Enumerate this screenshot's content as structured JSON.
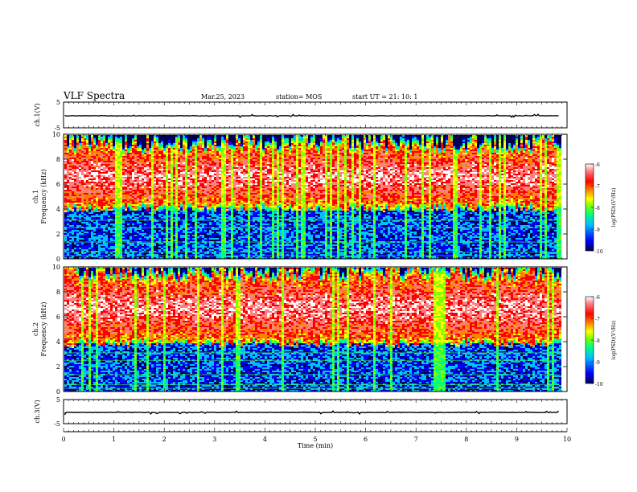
{
  "header": {
    "title": "VLF Spectra",
    "date": "Mar.25, 2023",
    "station": "station= MOS",
    "start_ut": "start  UT =   21: 10: 1"
  },
  "colors": {
    "colormap": [
      "#000050",
      "#0000ff",
      "#00c0ff",
      "#00ff80",
      "#80ff00",
      "#ffff00",
      "#ff8000",
      "#ff0000",
      "#ff8080",
      "#ffffff"
    ]
  },
  "chart_data": [
    {
      "name_id": "ch1-waveform",
      "type": "line",
      "ylabel": "ch.1(V)",
      "ylim": [
        -5,
        5
      ],
      "ytick_labels": [
        "5",
        "-5"
      ],
      "approx_level": 0
    },
    {
      "name_id": "ch1-spectrogram",
      "type": "heatmap",
      "ylabel": "ch.1\nFrequency (kHz)",
      "ylabel_lines": [
        "ch.1",
        "Frequency (kHz)"
      ],
      "ylim": [
        0,
        10
      ],
      "ytick_labels": [
        "0",
        "2",
        "4",
        "6",
        "8",
        "10"
      ],
      "xlim": [
        0,
        10
      ],
      "colorbar": {
        "label": "log(PSD)(V²/Hz)",
        "range": [
          -10,
          -6
        ],
        "tick_labels": [
          "-6",
          "-7",
          "-8",
          "-9",
          "-10"
        ]
      },
      "band_kHz": [
        4.2,
        9.2
      ],
      "data_extends_to_min": 9.85
    },
    {
      "name_id": "ch2-spectrogram",
      "type": "heatmap",
      "ylabel": "ch.2\nFrequency (kHz)",
      "ylabel_lines": [
        "ch.2",
        "Frequency (kHz)"
      ],
      "ylim": [
        0,
        10
      ],
      "ytick_labels": [
        "0",
        "2",
        "4",
        "6",
        "8",
        "10"
      ],
      "xlim": [
        0,
        10
      ],
      "colorbar": {
        "label": "log(PSD)(V²/Hz)",
        "range": [
          -10,
          -6
        ],
        "tick_labels": [
          "-6",
          "-7",
          "-8",
          "-9",
          "-10"
        ]
      },
      "band_kHz": [
        4.0,
        9.5
      ],
      "data_extends_to_min": 9.85
    },
    {
      "name_id": "ch3-waveform",
      "type": "line",
      "ylabel": "ch.3(V)",
      "ylim": [
        -5,
        5
      ],
      "ytick_labels": [
        "5",
        "-5"
      ],
      "approx_level": 0
    }
  ],
  "xaxis": {
    "label": "Time  (min)",
    "range": [
      0,
      10
    ],
    "tick_labels": [
      "0",
      "1",
      "2",
      "3",
      "4",
      "5",
      "6",
      "7",
      "8",
      "9",
      "10"
    ]
  }
}
